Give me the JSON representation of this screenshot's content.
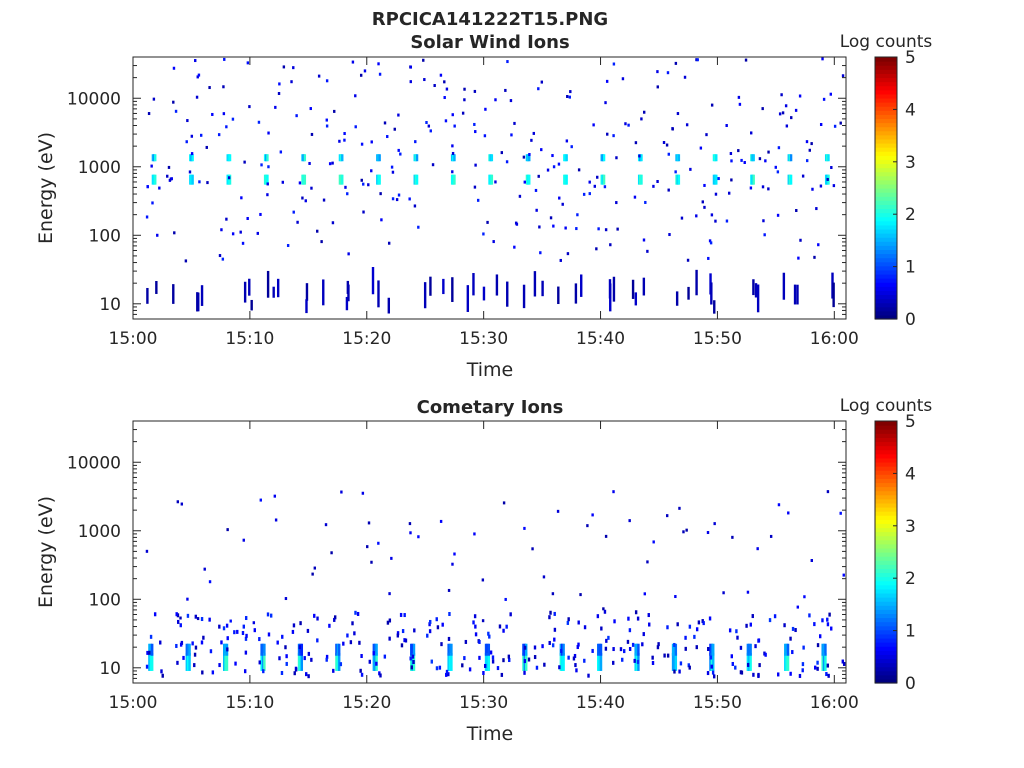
{
  "figure": {
    "title": "RPCICA141222T15.PNG"
  },
  "chart_data": [
    {
      "type": "heatmap",
      "title": "Solar Wind Ions",
      "xlabel": "Time",
      "ylabel": "Energy (eV)",
      "x_range_minutes": [
        0,
        61
      ],
      "x_ticks": [
        {
          "label": "15:00",
          "value": 0
        },
        {
          "label": "15:10",
          "value": 10
        },
        {
          "label": "15:20",
          "value": 20
        },
        {
          "label": "15:30",
          "value": 30
        },
        {
          "label": "15:40",
          "value": 40
        },
        {
          "label": "15:50",
          "value": 50
        },
        {
          "label": "16:00",
          "value": 60
        }
      ],
      "y_scale": "log",
      "y_range": [
        6,
        40000
      ],
      "y_ticks": [
        {
          "label": "10",
          "value": 10
        },
        {
          "label": "100",
          "value": 100
        },
        {
          "label": "1000",
          "value": 1000
        },
        {
          "label": "10000",
          "value": 10000
        }
      ],
      "colorbar": {
        "label": "Log counts",
        "range": [
          0,
          5
        ],
        "ticks": [
          "0",
          "1",
          "2",
          "3",
          "4",
          "5"
        ],
        "colormap": "jet"
      },
      "scan_period_minutes": 3.2,
      "scan_start_minutes": 1.0,
      "grid": false,
      "seed": 11
    },
    {
      "type": "heatmap",
      "title": "Cometary Ions",
      "xlabel": "Time",
      "ylabel": "Energy (eV)",
      "x_range_minutes": [
        0,
        61
      ],
      "x_ticks": [
        {
          "label": "15:00",
          "value": 0
        },
        {
          "label": "15:10",
          "value": 10
        },
        {
          "label": "15:20",
          "value": 20
        },
        {
          "label": "15:30",
          "value": 30
        },
        {
          "label": "15:40",
          "value": 40
        },
        {
          "label": "15:50",
          "value": 50
        },
        {
          "label": "16:00",
          "value": 60
        }
      ],
      "y_scale": "log",
      "y_range": [
        6,
        40000
      ],
      "y_ticks": [
        {
          "label": "10",
          "value": 10
        },
        {
          "label": "100",
          "value": 100
        },
        {
          "label": "1000",
          "value": 1000
        },
        {
          "label": "10000",
          "value": 10000
        }
      ],
      "colorbar": {
        "label": "Log counts",
        "range": [
          0,
          5
        ],
        "ticks": [
          "0",
          "1",
          "2",
          "3",
          "4",
          "5"
        ],
        "colormap": "jet"
      },
      "scan_period_minutes": 3.2,
      "scan_start_minutes": 1.0,
      "grid": false,
      "seed": 29
    }
  ]
}
